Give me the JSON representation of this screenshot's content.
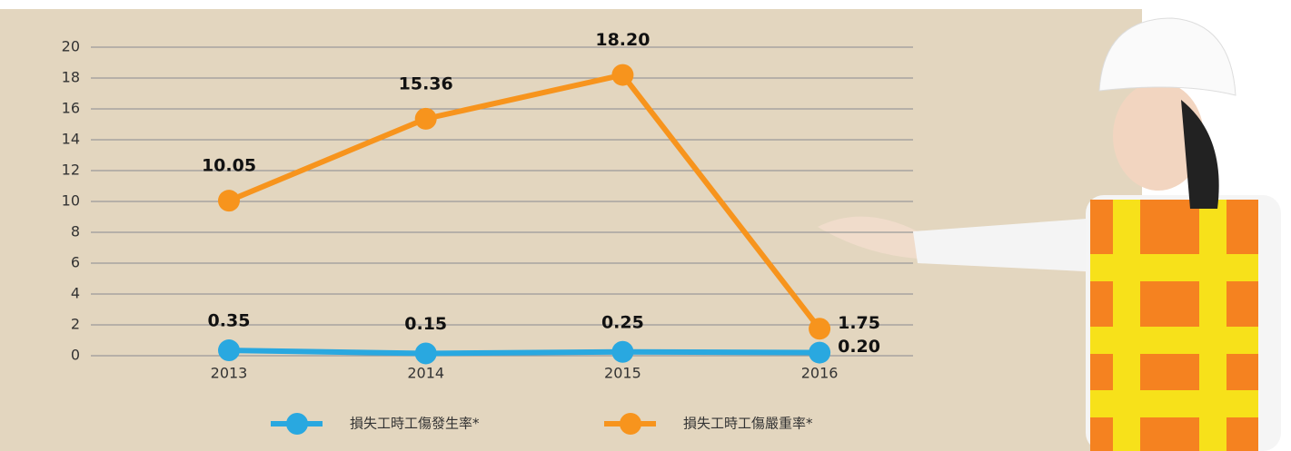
{
  "chart_data": {
    "type": "line",
    "categories": [
      "2013",
      "2014",
      "2015",
      "2016"
    ],
    "series": [
      {
        "name": "損失工時工傷發生率*",
        "color": "#29a8e0",
        "values": [
          0.35,
          0.15,
          0.25,
          0.2
        ],
        "value_labels": [
          "0.35",
          "0.15",
          "0.25",
          "0.20"
        ]
      },
      {
        "name": "損失工時工傷嚴重率*",
        "color": "#f7941d",
        "values": [
          10.05,
          15.36,
          18.2,
          1.75
        ],
        "value_labels": [
          "10.05",
          "15.36",
          "18.20",
          "1.75"
        ]
      }
    ],
    "ylim": [
      0,
      20
    ],
    "yticks": [
      0,
      2,
      4,
      6,
      8,
      10,
      12,
      14,
      16,
      18,
      20
    ],
    "grid": true
  }
}
